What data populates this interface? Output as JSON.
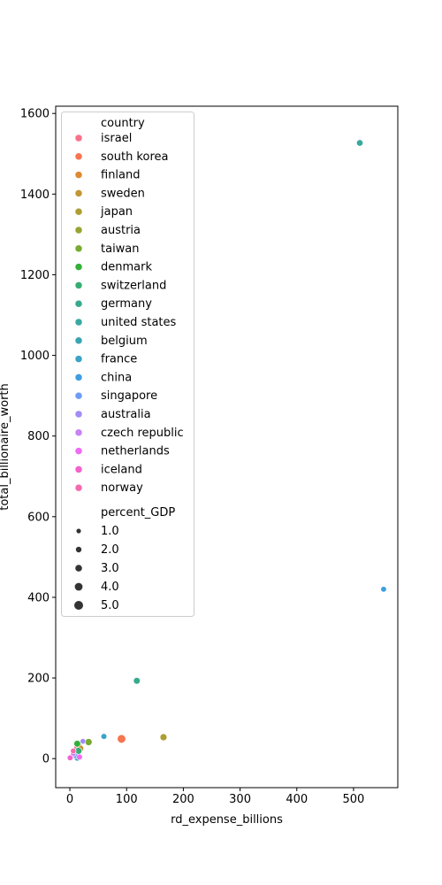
{
  "chart_data": {
    "type": "scatter",
    "xlabel": "rd_expense_billions",
    "ylabel": "total_billionaire_worth",
    "xlim": [
      -25,
      578
    ],
    "ylim": [
      -72,
      1618
    ],
    "xticks": [
      0,
      100,
      200,
      300,
      400,
      500
    ],
    "yticks": [
      0,
      200,
      400,
      600,
      800,
      1000,
      1200,
      1400,
      1600
    ],
    "grid": false,
    "legend_position": "top-left",
    "legend": {
      "hue_title": "country",
      "size_title": "percent_GDP",
      "sizes": [
        {
          "label": "1.0",
          "value": 1.0
        },
        {
          "label": "2.0",
          "value": 2.0
        },
        {
          "label": "3.0",
          "value": 3.0
        },
        {
          "label": "4.0",
          "value": 4.0
        },
        {
          "label": "5.0",
          "value": 5.0
        }
      ]
    },
    "series": [
      {
        "name": "israel",
        "color": "#f77189",
        "x": 15,
        "y": 28,
        "percent_GDP": 4.9
      },
      {
        "name": "south korea",
        "color": "#f7754f",
        "x": 91,
        "y": 49,
        "percent_GDP": 4.6
      },
      {
        "name": "finland",
        "color": "#dd8a32",
        "x": 7,
        "y": 10,
        "percent_GDP": 2.8
      },
      {
        "name": "sweden",
        "color": "#c39534",
        "x": 18,
        "y": 25,
        "percent_GDP": 3.4
      },
      {
        "name": "japan",
        "color": "#ae9d31",
        "x": 165,
        "y": 53,
        "percent_GDP": 3.2
      },
      {
        "name": "austria",
        "color": "#97a431",
        "x": 14,
        "y": 15,
        "percent_GDP": 3.1
      },
      {
        "name": "taiwan",
        "color": "#77ab31",
        "x": 33,
        "y": 41,
        "percent_GDP": 3.3
      },
      {
        "name": "denmark",
        "color": "#33b039",
        "x": 13,
        "y": 37,
        "percent_GDP": 3.0
      },
      {
        "name": "switzerland",
        "color": "#36ad73",
        "x": 15,
        "y": 19,
        "percent_GDP": 3.2
      },
      {
        "name": "germany",
        "color": "#37aa8e",
        "x": 118,
        "y": 193,
        "percent_GDP": 3.0
      },
      {
        "name": "united states",
        "color": "#38a8a0",
        "x": 511,
        "y": 1527,
        "percent_GDP": 2.8
      },
      {
        "name": "belgium",
        "color": "#3aa5b2",
        "x": 13,
        "y": 2,
        "percent_GDP": 2.8
      },
      {
        "name": "france",
        "color": "#3ba3c6",
        "x": 60,
        "y": 55,
        "percent_GDP": 2.2
      },
      {
        "name": "china",
        "color": "#3e9fe0",
        "x": 553,
        "y": 420,
        "percent_GDP": 2.1
      },
      {
        "name": "singapore",
        "color": "#6e9bf4",
        "x": 10,
        "y": 7,
        "percent_GDP": 1.9
      },
      {
        "name": "australia",
        "color": "#a38cf4",
        "x": 23,
        "y": 43,
        "percent_GDP": 1.9
      },
      {
        "name": "czech republic",
        "color": "#c783f4",
        "x": 6,
        "y": 12,
        "percent_GDP": 1.9
      },
      {
        "name": "netherlands",
        "color": "#ef6bf4",
        "x": 17,
        "y": 4,
        "percent_GDP": 2.2
      },
      {
        "name": "iceland",
        "color": "#f461cc",
        "x": 0.5,
        "y": 2,
        "percent_GDP": 2.1
      },
      {
        "name": "norway",
        "color": "#f56aaf",
        "x": 6,
        "y": 19,
        "percent_GDP": 2.0
      }
    ]
  }
}
